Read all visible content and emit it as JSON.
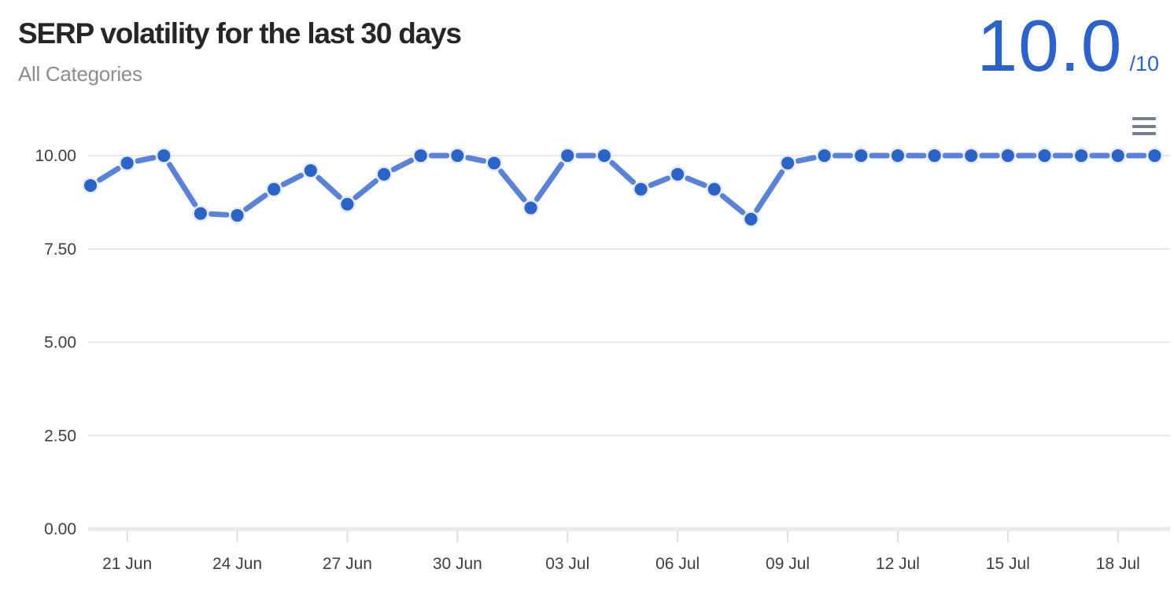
{
  "header": {
    "title": "SERP volatility for the last 30 days",
    "subtitle": "All Categories",
    "score": "10.0",
    "score_suffix": "/10"
  },
  "menu_button": {
    "icon": "hamburger-menu-icon",
    "aria_label": "Chart options menu"
  },
  "colors": {
    "accent_blue": "#2b63c9",
    "line": "#5a82d8",
    "point": "#2c63c8",
    "point_halo": "#e4ebf8",
    "grid": "#e2e2e2",
    "axis_baseline": "#eaeaea",
    "tick": "#e0e0e0",
    "axis_text": "#3d4043",
    "title_text": "#262626",
    "subtitle_text": "#8d8d8d",
    "menu_icon": "#77808d"
  },
  "chart_data": {
    "type": "line",
    "title": "SERP volatility for the last 30 days",
    "xlabel": "",
    "ylabel": "",
    "ylim": [
      0,
      10
    ],
    "grid": "horizontal",
    "legend": "none",
    "line_style": "dashed",
    "x": [
      "20 Jun",
      "21 Jun",
      "22 Jun",
      "23 Jun",
      "24 Jun",
      "25 Jun",
      "26 Jun",
      "27 Jun",
      "28 Jun",
      "29 Jun",
      "30 Jun",
      "01 Jul",
      "02 Jul",
      "03 Jul",
      "04 Jul",
      "05 Jul",
      "06 Jul",
      "07 Jul",
      "08 Jul",
      "09 Jul",
      "10 Jul",
      "11 Jul",
      "12 Jul",
      "13 Jul",
      "14 Jul",
      "15 Jul",
      "16 Jul",
      "17 Jul",
      "18 Jul",
      "19 Jul"
    ],
    "values": [
      9.2,
      9.8,
      10.0,
      8.45,
      8.4,
      9.1,
      9.6,
      8.7,
      9.5,
      10.0,
      10.0,
      9.8,
      8.6,
      10.0,
      10.0,
      9.1,
      9.5,
      9.1,
      8.3,
      9.8,
      10.0,
      10.0,
      10.0,
      10.0,
      10.0,
      10.0,
      10.0,
      10.0,
      10.0,
      10.0
    ],
    "x_tick_indices": [
      1,
      4,
      7,
      10,
      13,
      16,
      19,
      22,
      25,
      28
    ],
    "x_tick_labels": [
      "21 Jun",
      "24 Jun",
      "27 Jun",
      "30 Jun",
      "03 Jul",
      "06 Jul",
      "09 Jul",
      "12 Jul",
      "15 Jul",
      "18 Jul"
    ],
    "y_tick_values": [
      0,
      2.5,
      5,
      7.5,
      10
    ],
    "y_tick_labels": [
      "0.00",
      "2.50",
      "5.00",
      "7.50",
      "10.00"
    ]
  }
}
